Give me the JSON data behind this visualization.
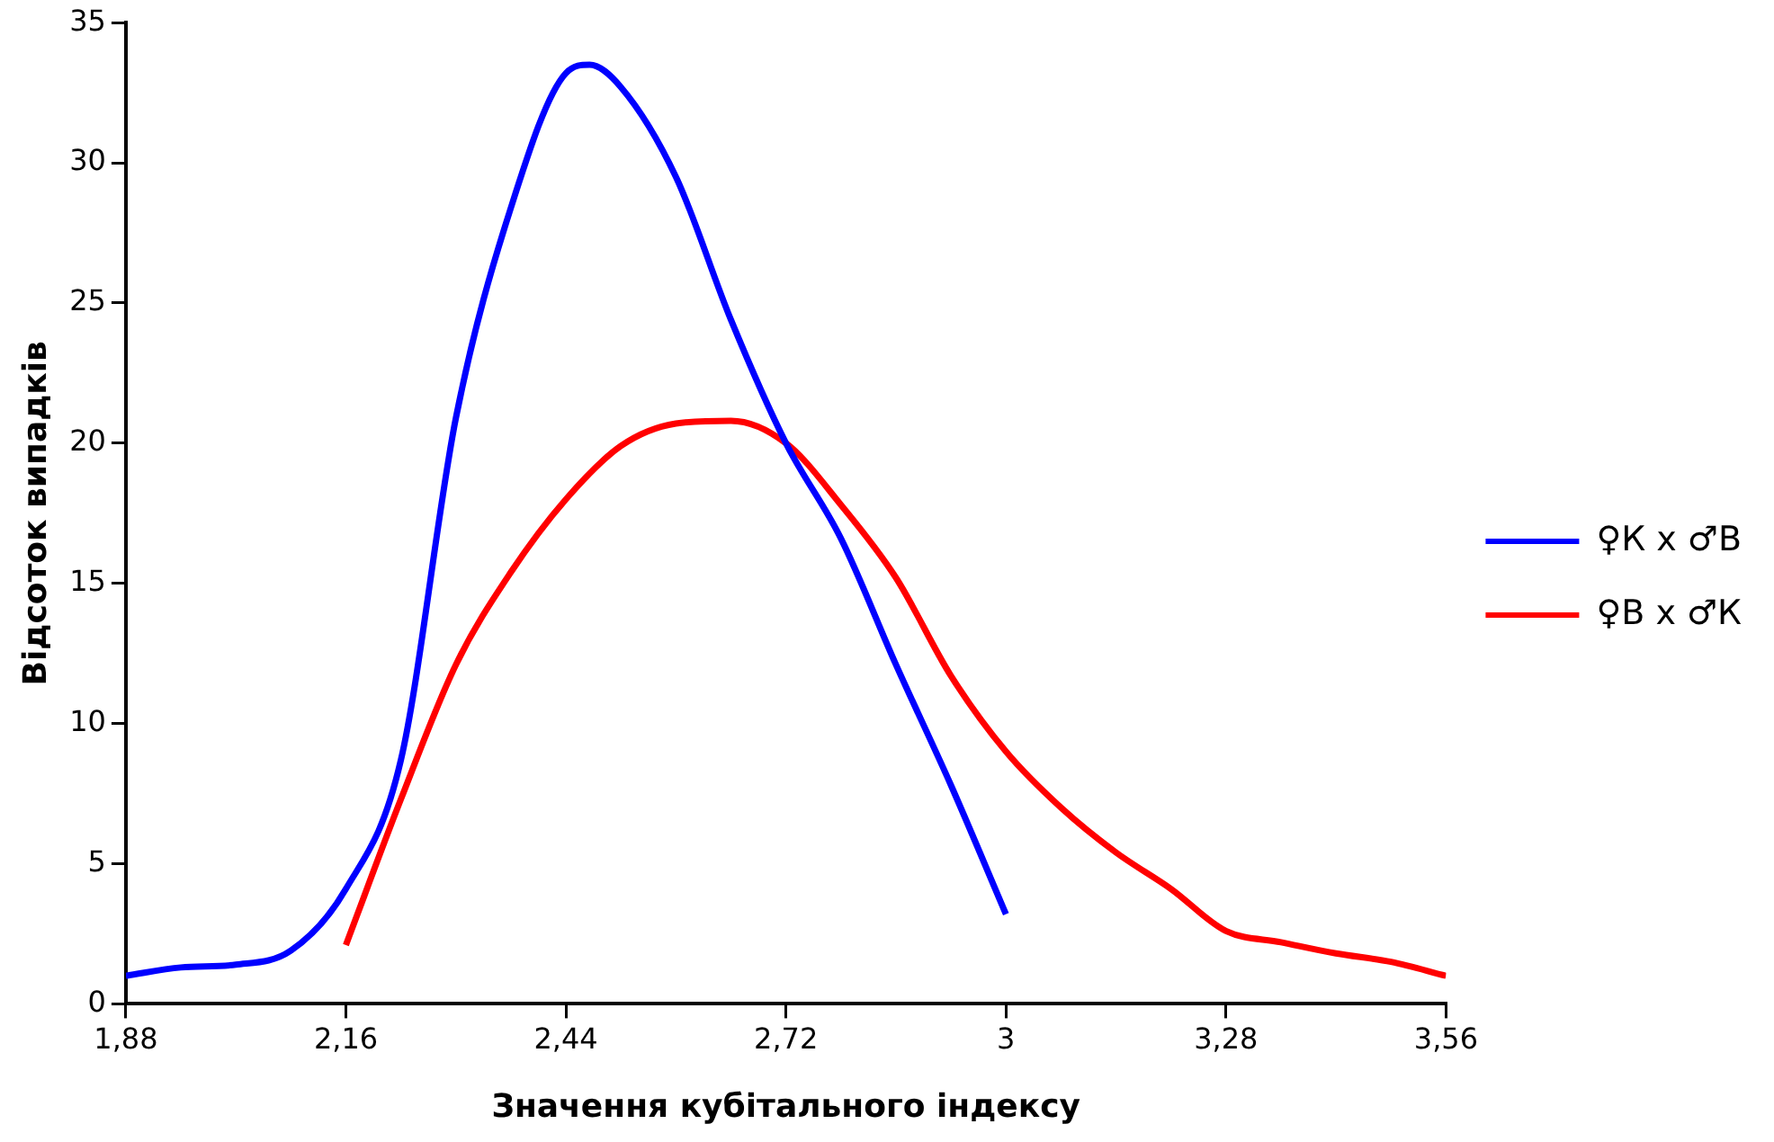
{
  "chart_data": {
    "type": "line",
    "xlabel": "Значення кубітального індексу",
    "ylabel": "Відсоток випадків",
    "xlim": [
      1.88,
      3.56
    ],
    "xticks": [
      {
        "value": 1.88,
        "label": "1,88"
      },
      {
        "value": 2.16,
        "label": "2,16"
      },
      {
        "value": 2.44,
        "label": "2,44"
      },
      {
        "value": 2.72,
        "label": "2,72"
      },
      3,
      {
        "value": 3.28,
        "label": "3,28"
      },
      {
        "value": 3.56,
        "label": "3,56"
      }
    ],
    "ylim": [
      0,
      35
    ],
    "yticks": [
      0,
      5,
      10,
      15,
      20,
      25,
      30,
      35
    ],
    "grid": false,
    "legend": "right",
    "marker": "none",
    "line_style": "solid",
    "series": [
      {
        "name": "♀К х ♂В",
        "color": "#0000ff",
        "x": [
          1.88,
          1.95,
          2.02,
          2.09,
          2.16,
          2.23,
          2.3,
          2.37,
          2.44,
          2.47,
          2.51,
          2.58,
          2.65,
          2.72,
          2.79,
          2.86,
          2.93,
          3.0
        ],
        "values": [
          1.0,
          1.3,
          1.4,
          1.9,
          4.1,
          8.7,
          20.9,
          28.4,
          33.2,
          33.5,
          32.7,
          29.5,
          24.4,
          20.0,
          16.6,
          12.1,
          7.8,
          3.2
        ]
      },
      {
        "name": "♀В х ♂К",
        "color": "#ff0000",
        "x": [
          2.16,
          2.23,
          2.3,
          2.37,
          2.44,
          2.51,
          2.58,
          2.65,
          2.72,
          2.79,
          2.86,
          2.93,
          3.0,
          3.07,
          3.14,
          3.21,
          3.28,
          3.35,
          3.42,
          3.49,
          3.56
        ],
        "values": [
          2.1,
          7.3,
          12.1,
          15.4,
          18.0,
          19.9,
          20.7,
          20.8,
          20.0,
          17.8,
          15.2,
          11.7,
          9.0,
          7.0,
          5.4,
          4.1,
          2.6,
          2.2,
          1.8,
          1.5,
          1.0
        ]
      }
    ]
  }
}
